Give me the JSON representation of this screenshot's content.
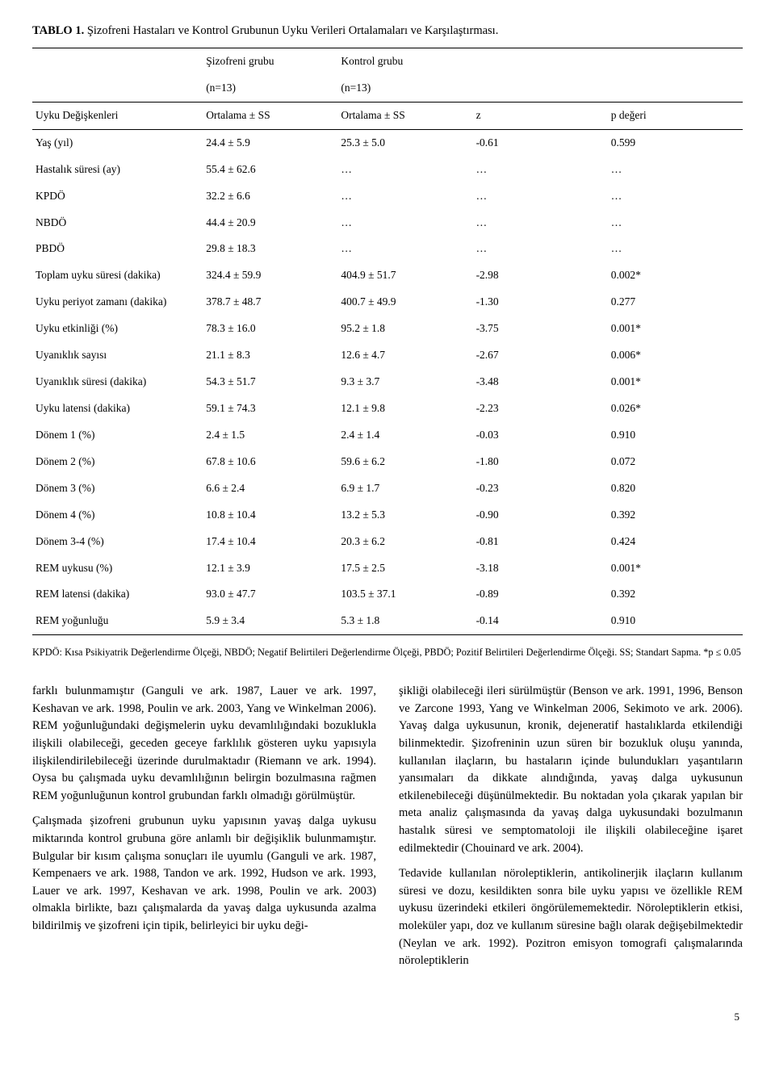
{
  "table": {
    "title_prefix": "TABLO 1.",
    "title_rest": "Şizofreni Hastaları ve Kontrol Grubunun Uyku Verileri Ortalamaları ve Karşılaştırması.",
    "group_a_name": "Şizofreni grubu",
    "group_a_n": "(n=13)",
    "group_b_name": "Kontrol grubu",
    "group_b_n": "(n=13)",
    "head_label": "Uyku Değişkenleri",
    "head_a": "Ortalama ± SS",
    "head_b": "Ortalama ± SS",
    "head_z": "z",
    "head_p": "p değeri",
    "rows": [
      {
        "label": "Yaş (yıl)",
        "a": "24.4 ± 5.9",
        "b": "25.3 ± 5.0",
        "z": "-0.61",
        "p": "0.599"
      },
      {
        "label": "Hastalık süresi (ay)",
        "a": "55.4 ± 62.6",
        "b": "…",
        "z": "…",
        "p": "…"
      },
      {
        "label": "KPDÖ",
        "a": "32.2 ± 6.6",
        "b": "…",
        "z": "…",
        "p": "…"
      },
      {
        "label": "NBDÖ",
        "a": "44.4 ± 20.9",
        "b": "…",
        "z": "…",
        "p": "…"
      },
      {
        "label": "PBDÖ",
        "a": "29.8 ± 18.3",
        "b": "…",
        "z": "…",
        "p": "…"
      },
      {
        "label": "Toplam uyku süresi (dakika)",
        "a": "324.4 ± 59.9",
        "b": "404.9 ± 51.7",
        "z": "-2.98",
        "p": "0.002*"
      },
      {
        "label": "Uyku periyot zamanı (dakika)",
        "a": "378.7 ± 48.7",
        "b": "400.7 ± 49.9",
        "z": "-1.30",
        "p": "0.277"
      },
      {
        "label": "Uyku etkinliği (%)",
        "a": "78.3 ± 16.0",
        "b": "95.2 ± 1.8",
        "z": "-3.75",
        "p": "0.001*"
      },
      {
        "label": "Uyanıklık sayısı",
        "a": "21.1 ± 8.3",
        "b": "12.6 ± 4.7",
        "z": "-2.67",
        "p": "0.006*"
      },
      {
        "label": "Uyanıklık süresi (dakika)",
        "a": "54.3 ± 51.7",
        "b": "9.3 ± 3.7",
        "z": "-3.48",
        "p": "0.001*"
      },
      {
        "label": "Uyku latensi (dakika)",
        "a": "59.1 ± 74.3",
        "b": "12.1 ± 9.8",
        "z": "-2.23",
        "p": "0.026*"
      },
      {
        "label": "Dönem 1 (%)",
        "a": "2.4 ± 1.5",
        "b": "2.4 ± 1.4",
        "z": "-0.03",
        "p": "0.910"
      },
      {
        "label": "Dönem 2 (%)",
        "a": "67.8 ± 10.6",
        "b": "59.6 ± 6.2",
        "z": "-1.80",
        "p": "0.072"
      },
      {
        "label": "Dönem 3 (%)",
        "a": "6.6 ± 2.4",
        "b": "6.9 ± 1.7",
        "z": "-0.23",
        "p": "0.820"
      },
      {
        "label": "Dönem 4 (%)",
        "a": "10.8 ± 10.4",
        "b": "13.2 ± 5.3",
        "z": "-0.90",
        "p": "0.392"
      },
      {
        "label": "Dönem 3-4 (%)",
        "a": "17.4 ± 10.4",
        "b": "20.3 ± 6.2",
        "z": "-0.81",
        "p": "0.424"
      },
      {
        "label": "REM uykusu (%)",
        "a": "12.1 ± 3.9",
        "b": "17.5 ± 2.5",
        "z": "-3.18",
        "p": "0.001*"
      },
      {
        "label": "REM latensi (dakika)",
        "a": "93.0 ± 47.7",
        "b": "103.5 ± 37.1",
        "z": "-0.89",
        "p": "0.392"
      },
      {
        "label": "REM yoğunluğu",
        "a": "5.9 ± 3.4",
        "b": "5.3 ± 1.8",
        "z": "-0.14",
        "p": "0.910"
      }
    ],
    "footnote": "KPDÖ: Kısa Psikiyatrik Değerlendirme Ölçeği, NBDÖ; Negatif Belirtileri Değerlendirme Ölçeği, PBDÖ; Pozitif Belirtileri Değerlendirme Ölçeği. SS; Standart Sapma. *p ≤ 0.05"
  },
  "body": {
    "left": {
      "p1": "farklı bulunmamıştır (Ganguli ve ark. 1987, Lauer ve ark. 1997, Keshavan ve ark. 1998, Poulin ve ark. 2003, Yang ve Winkelman 2006). REM yoğunluğundaki değişmelerin uyku devamlılığındaki bozuklukla ilişkili olabileceği, geceden geceye farklılık gösteren uyku yapısıyla ilişkilendirilebileceği üzerinde durulmaktadır (Riemann ve ark. 1994). Oysa bu çalışmada uyku devamlılığının belirgin bozulmasına rağmen REM yoğunluğunun kontrol grubundan farklı olmadığı görülmüştür.",
      "p2": "Çalışmada şizofreni grubunun uyku yapısının yavaş dalga uykusu miktarında kontrol grubuna göre anlamlı bir değişiklik bulunmamıştır. Bulgular bir kısım çalışma sonuçları ile uyumlu (Ganguli ve ark. 1987, Kempenaers ve ark. 1988, Tandon ve ark. 1992, Hudson ve ark. 1993, Lauer ve ark. 1997, Keshavan ve ark. 1998, Poulin ve ark. 2003) olmakla birlikte, bazı çalışmalarda da yavaş dalga uykusunda azalma bildirilmiş ve şizofreni için tipik, belirleyici bir uyku deği-"
    },
    "right": {
      "p1": "şikliği olabileceği ileri sürülmüştür (Benson ve ark. 1991, 1996, Benson ve Zarcone 1993, Yang ve Winkelman 2006, Sekimoto ve ark. 2006). Yavaş dalga uykusunun, kronik, dejeneratif hastalıklarda etkilendiği bilinmektedir. Şizofreninin uzun süren bir bozukluk oluşu yanında, kullanılan ilaçların, bu hastaların içinde bulundukları yaşantıların yansımaları da dikkate alındığında, yavaş dalga uykusunun etkilenebileceği düşünülmektedir. Bu noktadan yola çıkarak yapılan bir meta analiz çalışmasında da yavaş dalga uykusundaki bozulmanın hastalık süresi ve semptomatoloji ile ilişkili olabileceğine işaret edilmektedir (Chouinard ve ark. 2004).",
      "p2": "Tedavide kullanılan nöroleptiklerin, antikolinerjik ilaçların kullanım süresi ve dozu, kesildikten sonra bile uyku yapısı ve özellikle REM uykusu üzerindeki etkileri öngörülememektedir. Nöroleptiklerin etkisi, moleküler yapı, doz ve kullanım süresine bağlı olarak değişebilmektedir (Neylan ve ark. 1992). Pozitron emisyon tomografi çalışmalarında nöroleptiklerin"
    }
  },
  "page_number": "5",
  "style": {
    "fonts": {
      "body_family": "Times New Roman",
      "body_size_pt": 11,
      "table_size_pt": 10,
      "footnote_size_pt": 9
    },
    "colors": {
      "text": "#000000",
      "background": "#ffffff",
      "rule": "#000000"
    }
  }
}
